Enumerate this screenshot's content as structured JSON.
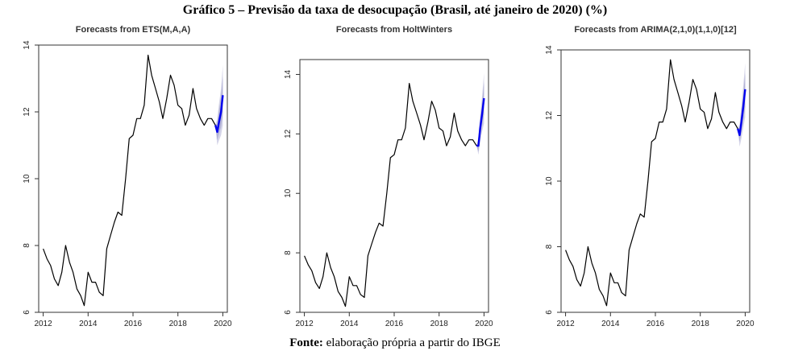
{
  "figure": {
    "title": "Gráfico 5 – Previsão da taxa de desocupação (Brasil, até janeiro de 2020) (%)",
    "source_label": "Fonte:",
    "source_text": " elaboração própria a partir do IBGE"
  },
  "colors": {
    "history": "#000000",
    "forecast": "#0000ee",
    "band_outer": "#d4d4e8",
    "band_inner": "#b2b2d6"
  },
  "chart_data": [
    {
      "type": "line",
      "title": "Forecasts from ETS(M,A,A)",
      "xlim": [
        2011.8,
        2020.2
      ],
      "ylim": [
        6,
        14
      ],
      "xticks": [
        2012,
        2014,
        2016,
        2018,
        2020
      ],
      "yticks": [
        6,
        8,
        10,
        12,
        14
      ],
      "history": {
        "x": [
          2012.0,
          2012.17,
          2012.33,
          2012.5,
          2012.67,
          2012.83,
          2013.0,
          2013.17,
          2013.33,
          2013.5,
          2013.67,
          2013.83,
          2014.0,
          2014.17,
          2014.33,
          2014.5,
          2014.67,
          2014.83,
          2015.0,
          2015.17,
          2015.33,
          2015.5,
          2015.67,
          2015.83,
          2016.0,
          2016.17,
          2016.33,
          2016.5,
          2016.67,
          2016.83,
          2017.0,
          2017.17,
          2017.33,
          2017.5,
          2017.67,
          2017.83,
          2018.0,
          2018.17,
          2018.33,
          2018.5,
          2018.67,
          2018.83,
          2019.0,
          2019.17,
          2019.33,
          2019.5,
          2019.67
        ],
        "y": [
          7.9,
          7.6,
          7.4,
          7.0,
          6.8,
          7.2,
          8.0,
          7.5,
          7.2,
          6.7,
          6.5,
          6.2,
          7.2,
          6.9,
          6.9,
          6.6,
          6.5,
          7.9,
          8.3,
          8.7,
          9.0,
          8.9,
          10.0,
          11.2,
          11.3,
          11.8,
          11.8,
          12.2,
          13.7,
          13.1,
          12.7,
          12.3,
          11.8,
          12.4,
          13.1,
          12.8,
          12.2,
          12.1,
          11.6,
          11.9,
          12.7,
          12.1,
          11.8,
          11.6,
          11.8,
          11.8,
          11.6
        ]
      },
      "forecast": {
        "x": [
          2019.67,
          2019.75,
          2019.83,
          2019.92,
          2020.0
        ],
        "y": [
          11.6,
          11.4,
          11.7,
          12.0,
          12.5
        ],
        "lo80": [
          11.6,
          11.15,
          11.35,
          11.55,
          11.95
        ],
        "hi80": [
          11.6,
          11.65,
          12.05,
          12.45,
          13.05
        ],
        "lo95": [
          11.6,
          11.0,
          11.15,
          11.3,
          11.6
        ],
        "hi95": [
          11.6,
          11.8,
          12.25,
          12.7,
          13.4
        ]
      }
    },
    {
      "type": "line",
      "title": "Forecasts from HoltWinters",
      "xlim": [
        2011.8,
        2020.2
      ],
      "ylim": [
        6,
        14.5
      ],
      "xticks": [
        2012,
        2014,
        2016,
        2018,
        2020
      ],
      "yticks": [
        6,
        8,
        10,
        12,
        14
      ],
      "history": {
        "x": [
          2012.0,
          2012.17,
          2012.33,
          2012.5,
          2012.67,
          2012.83,
          2013.0,
          2013.17,
          2013.33,
          2013.5,
          2013.67,
          2013.83,
          2014.0,
          2014.17,
          2014.33,
          2014.5,
          2014.67,
          2014.83,
          2015.0,
          2015.17,
          2015.33,
          2015.5,
          2015.67,
          2015.83,
          2016.0,
          2016.17,
          2016.33,
          2016.5,
          2016.67,
          2016.83,
          2017.0,
          2017.17,
          2017.33,
          2017.5,
          2017.67,
          2017.83,
          2018.0,
          2018.17,
          2018.33,
          2018.5,
          2018.67,
          2018.83,
          2019.0,
          2019.17,
          2019.33,
          2019.5,
          2019.67
        ],
        "y": [
          7.9,
          7.6,
          7.4,
          7.0,
          6.8,
          7.2,
          8.0,
          7.5,
          7.2,
          6.7,
          6.5,
          6.2,
          7.2,
          6.9,
          6.9,
          6.6,
          6.5,
          7.9,
          8.3,
          8.7,
          9.0,
          8.9,
          10.0,
          11.2,
          11.3,
          11.8,
          11.8,
          12.2,
          13.7,
          13.1,
          12.7,
          12.3,
          11.8,
          12.4,
          13.1,
          12.8,
          12.2,
          12.1,
          11.6,
          11.9,
          12.7,
          12.1,
          11.8,
          11.6,
          11.8,
          11.8,
          11.6
        ]
      },
      "forecast": {
        "x": [
          2019.67,
          2019.75,
          2019.83,
          2019.92,
          2020.0
        ],
        "y": [
          11.6,
          11.6,
          12.2,
          12.7,
          13.2
        ],
        "lo80": [
          11.6,
          11.4,
          11.9,
          12.3,
          12.65
        ],
        "hi80": [
          11.6,
          11.8,
          12.5,
          13.1,
          13.75
        ],
        "lo95": [
          11.6,
          11.3,
          11.75,
          12.1,
          12.35
        ],
        "hi95": [
          11.6,
          11.9,
          12.65,
          13.3,
          14.05
        ]
      }
    },
    {
      "type": "line",
      "title": "Forecasts from ARIMA(2,1,0)(1,1,0)[12]",
      "xlim": [
        2011.8,
        2020.2
      ],
      "ylim": [
        6,
        14
      ],
      "xticks": [
        2012,
        2014,
        2016,
        2018,
        2020
      ],
      "yticks": [
        6,
        8,
        10,
        12,
        14
      ],
      "history": {
        "x": [
          2012.0,
          2012.17,
          2012.33,
          2012.5,
          2012.67,
          2012.83,
          2013.0,
          2013.17,
          2013.33,
          2013.5,
          2013.67,
          2013.83,
          2014.0,
          2014.17,
          2014.33,
          2014.5,
          2014.67,
          2014.83,
          2015.0,
          2015.17,
          2015.33,
          2015.5,
          2015.67,
          2015.83,
          2016.0,
          2016.17,
          2016.33,
          2016.5,
          2016.67,
          2016.83,
          2017.0,
          2017.17,
          2017.33,
          2017.5,
          2017.67,
          2017.83,
          2018.0,
          2018.17,
          2018.33,
          2018.5,
          2018.67,
          2018.83,
          2019.0,
          2019.17,
          2019.33,
          2019.5,
          2019.67
        ],
        "y": [
          7.9,
          7.6,
          7.4,
          7.0,
          6.8,
          7.2,
          8.0,
          7.5,
          7.2,
          6.7,
          6.5,
          6.2,
          7.2,
          6.9,
          6.9,
          6.6,
          6.5,
          7.9,
          8.3,
          8.7,
          9.0,
          8.9,
          10.0,
          11.2,
          11.3,
          11.8,
          11.8,
          12.2,
          13.7,
          13.1,
          12.7,
          12.3,
          11.8,
          12.4,
          13.1,
          12.8,
          12.2,
          12.1,
          11.6,
          11.9,
          12.7,
          12.1,
          11.8,
          11.6,
          11.8,
          11.8,
          11.6
        ]
      },
      "forecast": {
        "x": [
          2019.67,
          2019.75,
          2019.83,
          2019.92,
          2020.0
        ],
        "y": [
          11.6,
          11.4,
          11.8,
          12.3,
          12.8
        ],
        "lo80": [
          11.6,
          11.2,
          11.5,
          11.9,
          12.25
        ],
        "hi80": [
          11.6,
          11.6,
          12.1,
          12.7,
          13.3
        ],
        "lo95": [
          11.6,
          11.05,
          11.3,
          11.65,
          11.95
        ],
        "hi95": [
          11.6,
          11.75,
          12.3,
          12.95,
          13.6
        ]
      }
    }
  ]
}
